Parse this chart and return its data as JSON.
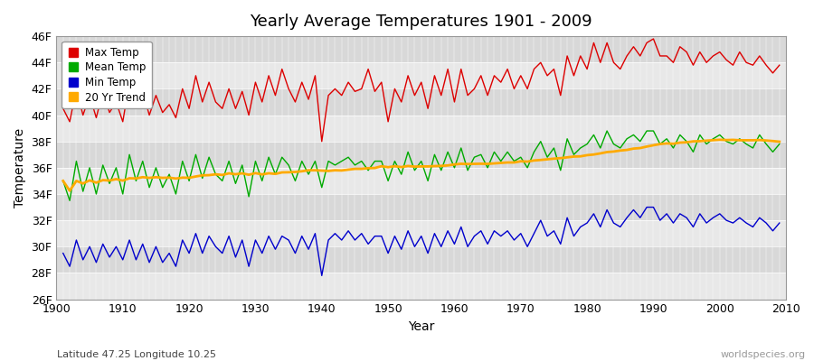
{
  "title": "Yearly Average Temperatures 1901 - 2009",
  "xlabel": "Year",
  "ylabel": "Temperature",
  "subtitle": "Latitude 47.25 Longitude 10.25",
  "watermark": "worldspecies.org",
  "years": [
    1901,
    1902,
    1903,
    1904,
    1905,
    1906,
    1907,
    1908,
    1909,
    1910,
    1911,
    1912,
    1913,
    1914,
    1915,
    1916,
    1917,
    1918,
    1919,
    1920,
    1921,
    1922,
    1923,
    1924,
    1925,
    1926,
    1927,
    1928,
    1929,
    1930,
    1931,
    1932,
    1933,
    1934,
    1935,
    1936,
    1937,
    1938,
    1939,
    1940,
    1941,
    1942,
    1943,
    1944,
    1945,
    1946,
    1947,
    1948,
    1949,
    1950,
    1951,
    1952,
    1953,
    1954,
    1955,
    1956,
    1957,
    1958,
    1959,
    1960,
    1961,
    1962,
    1963,
    1964,
    1965,
    1966,
    1967,
    1968,
    1969,
    1970,
    1971,
    1972,
    1973,
    1974,
    1975,
    1976,
    1977,
    1978,
    1979,
    1980,
    1981,
    1982,
    1983,
    1984,
    1985,
    1986,
    1987,
    1988,
    1989,
    1990,
    1991,
    1992,
    1993,
    1994,
    1995,
    1996,
    1997,
    1998,
    1999,
    2000,
    2001,
    2002,
    2003,
    2004,
    2005,
    2006,
    2007,
    2008,
    2009
  ],
  "max_temp": [
    40.5,
    39.5,
    42.0,
    40.0,
    41.5,
    39.8,
    41.8,
    40.2,
    41.0,
    39.5,
    42.5,
    40.5,
    41.8,
    40.0,
    41.5,
    40.2,
    40.8,
    39.8,
    42.0,
    40.5,
    43.0,
    41.0,
    42.5,
    41.0,
    40.5,
    42.0,
    40.5,
    41.8,
    40.0,
    42.5,
    41.0,
    43.0,
    41.5,
    43.5,
    42.0,
    41.0,
    42.5,
    41.2,
    43.0,
    38.0,
    41.5,
    42.0,
    41.5,
    42.5,
    41.8,
    42.0,
    43.5,
    41.8,
    42.5,
    39.5,
    42.0,
    41.0,
    43.0,
    41.5,
    42.5,
    40.5,
    43.0,
    41.5,
    43.5,
    41.0,
    43.5,
    41.5,
    42.0,
    43.0,
    41.5,
    43.0,
    42.5,
    43.5,
    42.0,
    43.0,
    42.0,
    43.5,
    44.0,
    43.0,
    43.5,
    41.5,
    44.5,
    43.0,
    44.5,
    43.5,
    45.5,
    44.0,
    45.5,
    44.0,
    43.5,
    44.5,
    45.2,
    44.5,
    45.5,
    45.8,
    44.5,
    44.5,
    44.0,
    45.2,
    44.8,
    43.8,
    44.8,
    44.0,
    44.5,
    44.8,
    44.2,
    43.8,
    44.8,
    44.0,
    43.8,
    44.5,
    43.8,
    43.2,
    43.8
  ],
  "mean_temp": [
    35.0,
    33.5,
    36.5,
    34.2,
    36.0,
    34.0,
    36.2,
    34.8,
    36.0,
    34.0,
    37.0,
    35.0,
    36.5,
    34.5,
    36.0,
    34.5,
    35.5,
    34.0,
    36.5,
    35.0,
    37.0,
    35.2,
    36.8,
    35.5,
    35.0,
    36.5,
    34.8,
    36.2,
    33.8,
    36.5,
    35.0,
    36.8,
    35.5,
    36.8,
    36.2,
    35.0,
    36.5,
    35.5,
    36.5,
    34.5,
    36.5,
    36.2,
    36.5,
    36.8,
    36.2,
    36.5,
    35.8,
    36.5,
    36.5,
    35.0,
    36.5,
    35.5,
    37.2,
    35.8,
    36.5,
    35.0,
    37.0,
    35.8,
    37.2,
    36.0,
    37.5,
    35.8,
    36.8,
    37.0,
    36.0,
    37.2,
    36.5,
    37.2,
    36.5,
    36.8,
    36.0,
    37.2,
    38.0,
    36.8,
    37.5,
    35.8,
    38.2,
    37.0,
    37.5,
    37.8,
    38.5,
    37.5,
    38.8,
    37.8,
    37.5,
    38.2,
    38.5,
    38.0,
    38.8,
    38.8,
    37.8,
    38.2,
    37.5,
    38.5,
    38.0,
    37.2,
    38.5,
    37.8,
    38.2,
    38.5,
    38.0,
    37.8,
    38.2,
    37.8,
    37.5,
    38.5,
    37.8,
    37.2,
    37.8
  ],
  "min_temp": [
    29.5,
    28.5,
    30.5,
    29.0,
    30.0,
    28.8,
    30.2,
    29.2,
    30.0,
    29.0,
    30.5,
    29.0,
    30.2,
    28.8,
    30.0,
    28.8,
    29.5,
    28.5,
    30.5,
    29.5,
    31.0,
    29.5,
    30.8,
    30.0,
    29.5,
    30.8,
    29.2,
    30.5,
    28.5,
    30.5,
    29.5,
    30.8,
    29.8,
    30.8,
    30.5,
    29.5,
    30.8,
    29.8,
    31.0,
    27.8,
    30.5,
    31.0,
    30.5,
    31.2,
    30.5,
    31.0,
    30.2,
    30.8,
    30.8,
    29.5,
    30.8,
    29.8,
    31.2,
    30.0,
    30.8,
    29.5,
    31.0,
    30.0,
    31.2,
    30.2,
    31.5,
    30.0,
    30.8,
    31.2,
    30.2,
    31.2,
    30.8,
    31.2,
    30.5,
    31.0,
    30.0,
    31.0,
    32.0,
    30.8,
    31.2,
    30.2,
    32.2,
    30.8,
    31.5,
    31.8,
    32.5,
    31.5,
    32.8,
    31.8,
    31.5,
    32.2,
    32.8,
    32.2,
    33.0,
    33.0,
    32.0,
    32.5,
    31.8,
    32.5,
    32.2,
    31.5,
    32.5,
    31.8,
    32.2,
    32.5,
    32.0,
    31.8,
    32.2,
    31.8,
    31.5,
    32.2,
    31.8,
    31.2,
    31.8
  ],
  "colors": {
    "max": "#dd0000",
    "mean": "#00aa00",
    "min": "#0000cc",
    "trend": "#ffaa00",
    "background_light": "#e8e8e8",
    "background_dark": "#d8d8d8",
    "grid": "#ffffff"
  },
  "ylim": [
    26,
    46
  ],
  "yticks": [
    26,
    28,
    30,
    32,
    34,
    36,
    38,
    40,
    42,
    44,
    46
  ],
  "ytick_labels": [
    "26F",
    "28F",
    "30F",
    "32F",
    "34F",
    "36F",
    "38F",
    "40F",
    "42F",
    "44F",
    "46F"
  ],
  "legend_labels": [
    "Max Temp",
    "Mean Temp",
    "Min Temp",
    "20 Yr Trend"
  ],
  "band_edges": [
    26,
    28,
    30,
    32,
    34,
    36,
    38,
    40,
    42,
    44,
    46
  ]
}
